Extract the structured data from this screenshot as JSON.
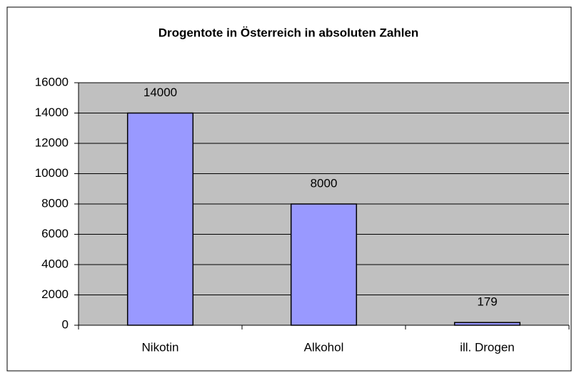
{
  "chart_data": {
    "type": "bar",
    "title": "Drogentote in Österreich in absoluten Zahlen",
    "categories": [
      "Nikotin",
      "Alkohol",
      "ill. Drogen"
    ],
    "values": [
      14000,
      8000,
      179
    ],
    "color": "#9999ff",
    "ylim": [
      0,
      16000
    ],
    "yticks": [
      0,
      2000,
      4000,
      6000,
      8000,
      10000,
      12000,
      14000,
      16000
    ],
    "grid": true,
    "data_labels": true
  }
}
